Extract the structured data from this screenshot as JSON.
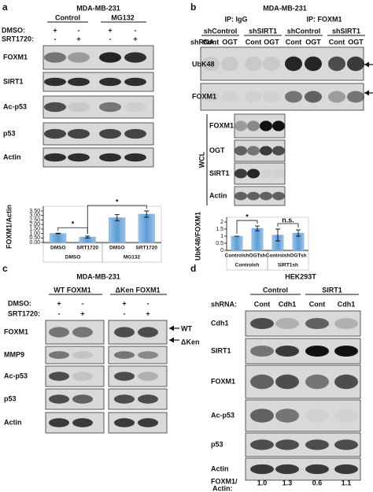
{
  "panels": {
    "a": {
      "letter": "a",
      "cell_line": "MDA-MB-231",
      "groups": [
        "Control",
        "MG132"
      ],
      "treatments": [
        {
          "name": "DMSO:",
          "signs": [
            "+",
            "-",
            "+",
            "-"
          ]
        },
        {
          "name": "SRT1720:",
          "signs": [
            "-",
            "+",
            "-",
            "+"
          ]
        }
      ],
      "blots": [
        "FOXM1",
        "SIRT1",
        "Ac-p53",
        "p53",
        "Actin"
      ]
    },
    "b": {
      "letter": "b",
      "cell_line": "MDA-MB-231",
      "ip": [
        "IP: IgG",
        "IP: FOXM1"
      ],
      "shrna_groups": [
        "shControl",
        "shSIRT1",
        "shControl",
        "shSIRT1"
      ],
      "shrna_label": "shRNA:",
      "lanes": [
        "Cont",
        "OGT",
        "Cont",
        "OGT",
        "Cont",
        "OGT",
        "Cont",
        "OGT"
      ],
      "ip_blots": [
        "UbK48",
        "FOXM1"
      ],
      "wcl_label": "WCL",
      "wcl_blots": [
        "FOXM1",
        "OGT",
        "SIRT1",
        "Actin"
      ]
    },
    "c": {
      "letter": "c",
      "cell_line": "MDA-MB-231",
      "groups": [
        "WT FOXM1",
        "ΔKen FOXM1"
      ],
      "treatments": [
        {
          "name": "DMSO:",
          "signs": [
            "+",
            "-",
            "+",
            "-"
          ]
        },
        {
          "name": "SRT1720:",
          "signs": [
            "-",
            "+",
            "-",
            "+"
          ]
        }
      ],
      "blots": [
        "FOXM1",
        "MMP9",
        "Ac-p53",
        "p53",
        "Actin"
      ],
      "arrows": [
        "WT",
        "ΔKen"
      ]
    },
    "d": {
      "letter": "d",
      "cell_line": "HEK293T",
      "groups": [
        "Control",
        "SIRT1"
      ],
      "shrna_label": "shRNA:",
      "lanes": [
        "Cont",
        "Cdh1",
        "Cont",
        "Cdh1"
      ],
      "blots": [
        "Cdh1",
        "SIRT1",
        "FOXM1",
        "Ac-p53",
        "p53",
        "Actin"
      ],
      "ratio_label": [
        "FOXM1/",
        "Actin:"
      ],
      "ratios": [
        "1.0",
        "1.3",
        "0.6",
        "1.1"
      ]
    }
  },
  "chart_data": [
    {
      "type": "bar",
      "ylabel": "FOXM1/Actin",
      "categories": [
        "DMSO",
        "SRT1720",
        "DMSO",
        "SRT1720"
      ],
      "groups": [
        "DMSO",
        "MG132"
      ],
      "values": [
        1.0,
        0.6,
        2.75,
        3.15
      ],
      "errors": [
        0.03,
        0.1,
        0.35,
        0.35
      ],
      "color": "#6fa8dc",
      "ylim": [
        0,
        3.5
      ],
      "yticks": [
        {
          "value": 0,
          "label": "0.00"
        },
        {
          "value": 0.5,
          "label": "0.50"
        },
        {
          "value": 1,
          "label": "1.00"
        },
        {
          "value": 1.5,
          "label": "1.50"
        },
        {
          "value": 2,
          "label": "2.00"
        },
        {
          "value": 2.5,
          "label": "2.50"
        },
        {
          "value": 3,
          "label": "3.00"
        },
        {
          "value": 3.5,
          "label": "3.50"
        }
      ],
      "annotations": [
        "*",
        "*"
      ]
    },
    {
      "type": "bar",
      "ylabel": "UbK48/FOXM1",
      "categories": [
        "Controlsh",
        "OGTsh",
        "Controlsh",
        "OGTsh"
      ],
      "groups": [
        "Controlsh",
        "SIRT1sh"
      ],
      "values": [
        1.0,
        1.55,
        1.08,
        1.22
      ],
      "errors": [
        0.0,
        0.17,
        0.42,
        0.22
      ],
      "color": "#6fa8dc",
      "ylim": [
        0,
        2
      ],
      "yticks": [
        0,
        0.5,
        1,
        1.5,
        2
      ],
      "annotations": [
        "*",
        "n.s."
      ]
    }
  ]
}
